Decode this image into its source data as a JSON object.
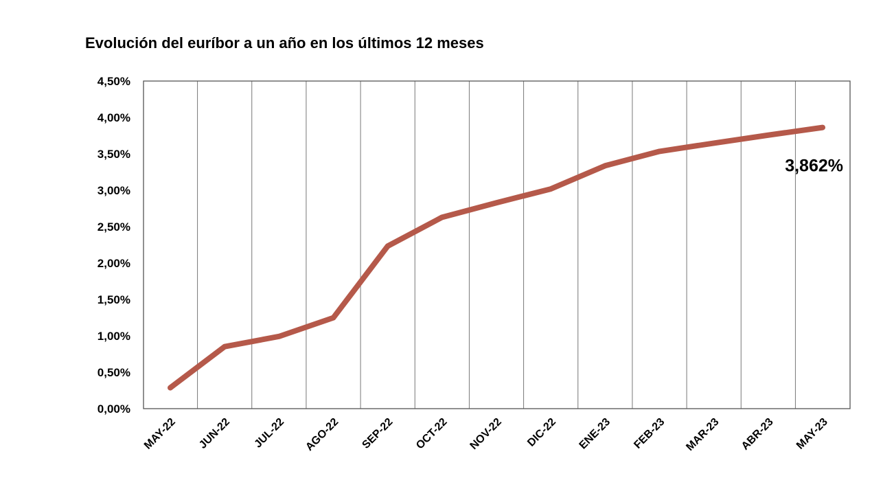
{
  "chart_data": {
    "type": "line",
    "title": "Evolución del euríbor a un año en los últimos 12 meses",
    "categories": [
      "MAY-22",
      "JUN-22",
      "JUL-22",
      "AGO-22",
      "SEP-22",
      "OCT-22",
      "NOV-22",
      "DIC-22",
      "ENE-23",
      "FEB-23",
      "MAR-23",
      "ABR-23",
      "MAY-23"
    ],
    "series": [
      {
        "values": [
          0.287,
          0.852,
          0.992,
          1.249,
          2.233,
          2.629,
          2.828,
          3.018,
          3.337,
          3.534,
          3.647,
          3.757,
          3.862
        ],
        "color": "#b5594a"
      }
    ],
    "ylim": [
      0,
      4.5
    ],
    "yticks": [
      0,
      0.5,
      1.0,
      1.5,
      2.0,
      2.5,
      3.0,
      3.5,
      4.0,
      4.5
    ],
    "ytick_labels": [
      "0,00%",
      "0,50%",
      "1,00%",
      "1,50%",
      "2,00%",
      "2,50%",
      "3,00%",
      "3,50%",
      "4,00%",
      "4,50%"
    ],
    "grid": {
      "vertical": true,
      "horizontal": false
    },
    "annotation": {
      "text": "3,862%",
      "category": "MAY-23"
    },
    "xlabel": "",
    "ylabel": ""
  }
}
